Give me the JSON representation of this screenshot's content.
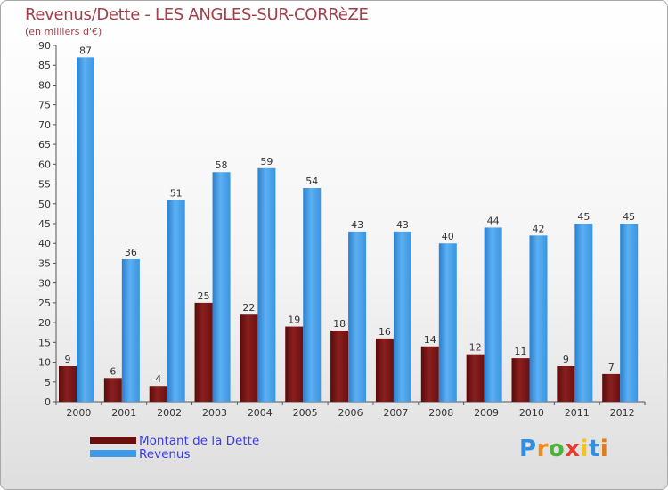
{
  "title": "Revenus/Dette - LES ANGLES-SUR-CORRèZE",
  "subtitle": "(en milliers d'€)",
  "brand": {
    "letters": [
      "P",
      "r",
      "o",
      "x",
      "i",
      "t",
      "i"
    ],
    "colors": [
      "#2f8fe0",
      "#f08a1c",
      "#4fb33a",
      "#e63c2f",
      "#f5c418",
      "#2f8fe0",
      "#e07a1c"
    ]
  },
  "colors": {
    "dette": "#7a1414",
    "revenus": "#3d9be9",
    "title": "#a2404a",
    "legend_text": "#3a3aee"
  },
  "chart_data": {
    "type": "bar",
    "categories": [
      "2000",
      "2001",
      "2002",
      "2003",
      "2004",
      "2005",
      "2006",
      "2007",
      "2008",
      "2009",
      "2010",
      "2011",
      "2012"
    ],
    "series": [
      {
        "name": "Montant de la Dette",
        "values": [
          9,
          6,
          4,
          25,
          22,
          19,
          18,
          16,
          14,
          12,
          11,
          9,
          7
        ]
      },
      {
        "name": "Revenus",
        "values": [
          87,
          36,
          51,
          58,
          59,
          54,
          43,
          43,
          40,
          44,
          42,
          45,
          45
        ]
      }
    ],
    "ylim": [
      0,
      90
    ],
    "yticks": [
      0,
      5,
      10,
      15,
      20,
      25,
      30,
      35,
      40,
      45,
      50,
      55,
      60,
      65,
      70,
      75,
      80,
      85,
      90
    ],
    "grid": false,
    "legend_position": "bottom-left"
  }
}
